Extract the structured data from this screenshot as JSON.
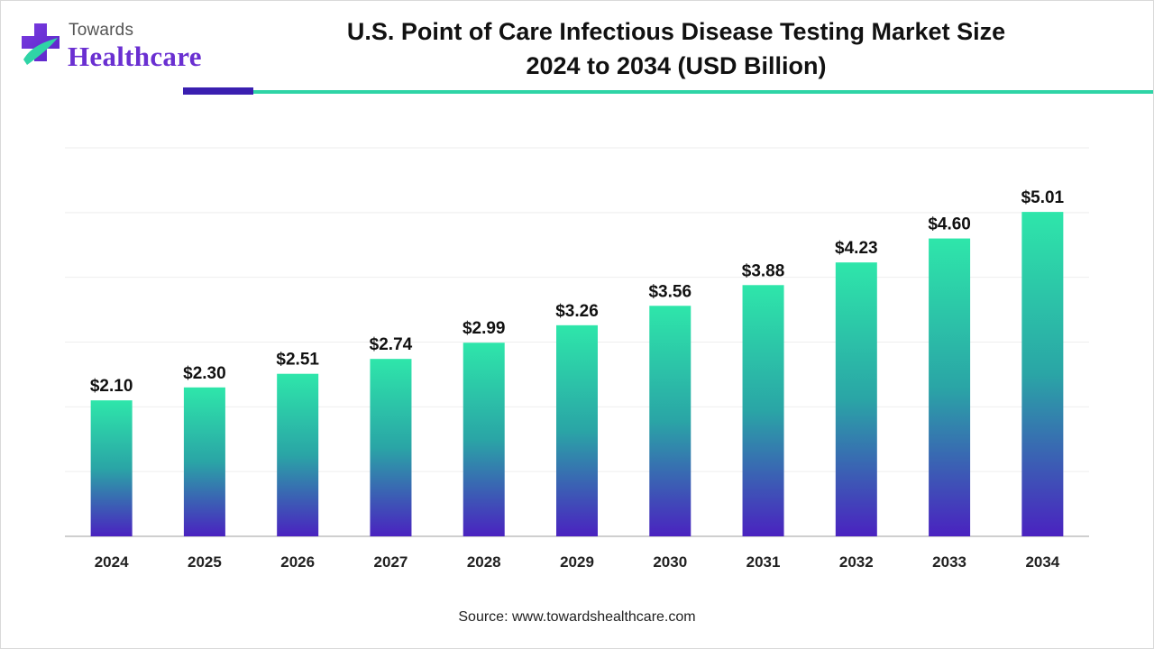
{
  "logo": {
    "line1": "Towards",
    "line2": "Healthcare"
  },
  "title_line1": "U.S. Point of Care Infectious Disease Testing Market Size",
  "title_line2": "2024 to 2034 (USD Billion)",
  "source": "Source: www.towardshealthcare.com",
  "colors": {
    "bar_top": "#2ee6aa",
    "bar_bottom": "#4a22c0",
    "brand_purple": "#6a2fd1",
    "brand_teal": "#2fd4a6"
  },
  "chart_data": {
    "type": "bar",
    "title": "U.S. Point of Care Infectious Disease Testing Market Size 2024 to 2034 (USD Billion)",
    "categories": [
      "2024",
      "2025",
      "2026",
      "2027",
      "2028",
      "2029",
      "2030",
      "2031",
      "2032",
      "2033",
      "2034"
    ],
    "values": [
      2.1,
      2.3,
      2.51,
      2.74,
      2.99,
      3.26,
      3.56,
      3.88,
      4.23,
      4.6,
      5.01
    ],
    "labels": [
      "$2.10",
      "$2.30",
      "$2.51",
      "$2.74",
      "$2.99",
      "$3.26",
      "$3.56",
      "$3.88",
      "$4.23",
      "$4.60",
      "$5.01"
    ],
    "xlabel": "",
    "ylabel": "",
    "ylim": [
      0,
      6
    ],
    "grid": true,
    "legend": "none"
  }
}
